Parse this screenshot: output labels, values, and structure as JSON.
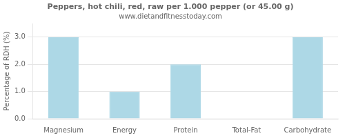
{
  "chart_data": {
    "type": "bar",
    "title": "Peppers, hot chili, red, raw per 1.000 pepper (or 45.00 g)",
    "subtitle": "www.dietandfitnesstoday.com",
    "ylabel": "Percentage of RDH (%)",
    "categories": [
      "Magnesium",
      "Energy",
      "Protein",
      "Total-Fat",
      "Carbohydrate"
    ],
    "values": [
      3.0,
      1.0,
      2.0,
      0.0,
      3.0
    ],
    "color": "#add8e6",
    "ylim": [
      0,
      3.5
    ],
    "yticks": [
      {
        "value": 0,
        "label": "0.0"
      },
      {
        "value": 1,
        "label": "1.0"
      },
      {
        "value": 2,
        "label": "2.0"
      },
      {
        "value": 3,
        "label": "3.0"
      }
    ],
    "grid": true
  }
}
